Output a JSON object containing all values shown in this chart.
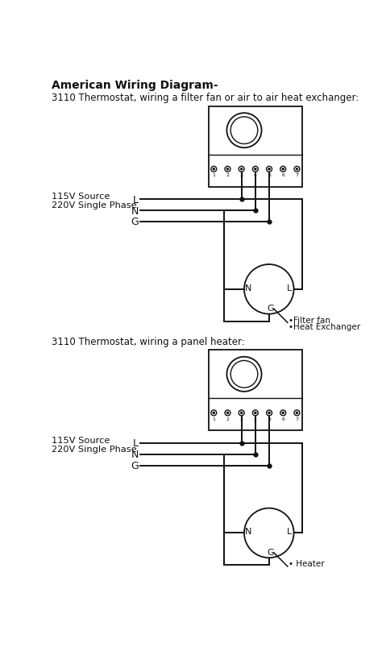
{
  "title": "American Wiring Diagram-",
  "title_fontsize": 10,
  "diagram1_label": "3110 Thermostat, wiring a filter fan or air to air heat exchanger:",
  "diagram2_label": "3110 Thermostat, wiring a panel heater:",
  "source_label1": "115V Source",
  "source_label2": "220V Single Phase",
  "annotations1": [
    "•Filter fan",
    "•Heat Exchanger"
  ],
  "annotations2": [
    "• Heater"
  ],
  "bg_color": "#ffffff",
  "line_color": "#111111",
  "text_color": "#111111",
  "figsize": [
    4.74,
    8.04
  ],
  "dpi": 100
}
